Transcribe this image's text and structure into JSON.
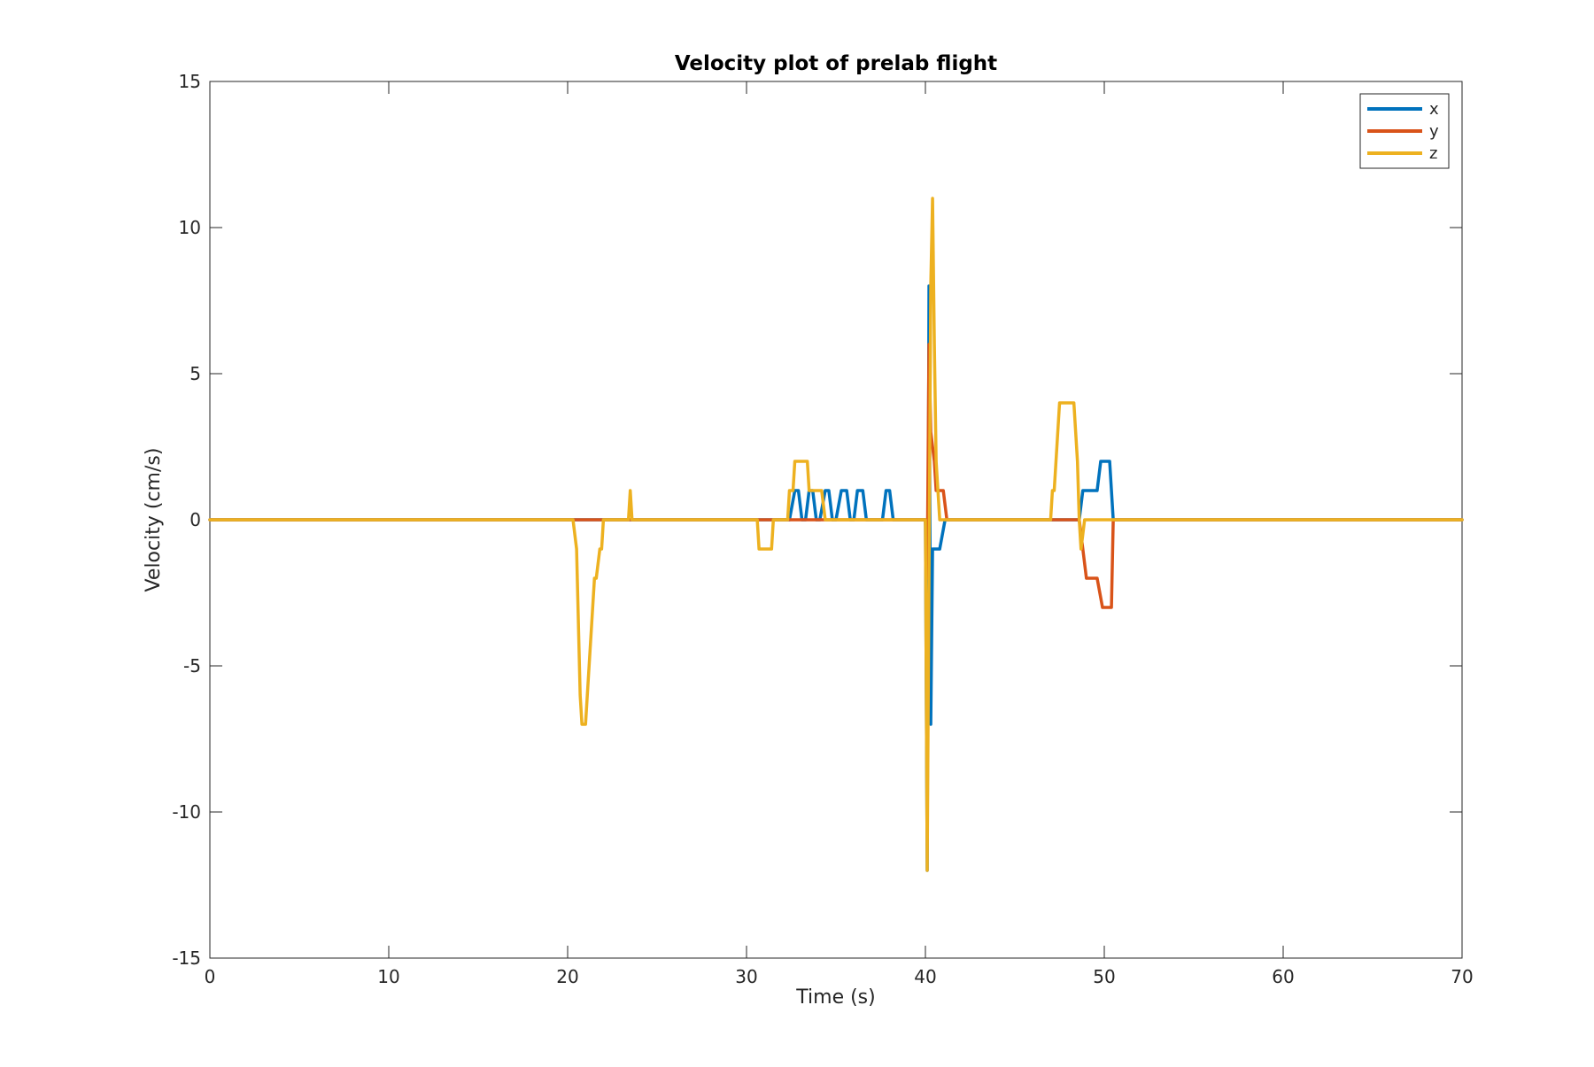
{
  "chart_data": {
    "type": "line",
    "title": "Velocity plot of prelab flight",
    "xlabel": "Time (s)",
    "ylabel": "Velocity (cm/s)",
    "xlim": [
      0,
      70
    ],
    "ylim": [
      -15,
      15
    ],
    "xticks": [
      0,
      10,
      20,
      30,
      40,
      50,
      60,
      70
    ],
    "yticks": [
      -15,
      -10,
      -5,
      0,
      5,
      10,
      15
    ],
    "grid": false,
    "legend": "top-right",
    "series": [
      {
        "name": "x",
        "color": "#0072BD",
        "points": [
          [
            0,
            0
          ],
          [
            32.4,
            0
          ],
          [
            32.7,
            1
          ],
          [
            32.9,
            1
          ],
          [
            33.1,
            0
          ],
          [
            33.3,
            0
          ],
          [
            33.5,
            1
          ],
          [
            33.7,
            1
          ],
          [
            33.9,
            0
          ],
          [
            34.1,
            0
          ],
          [
            34.4,
            1
          ],
          [
            34.6,
            1
          ],
          [
            34.8,
            0
          ],
          [
            35.0,
            0
          ],
          [
            35.3,
            1
          ],
          [
            35.6,
            1
          ],
          [
            35.8,
            0
          ],
          [
            36.0,
            0
          ],
          [
            36.2,
            1
          ],
          [
            36.5,
            1
          ],
          [
            36.7,
            0
          ],
          [
            37.6,
            0
          ],
          [
            37.8,
            1
          ],
          [
            38.0,
            1
          ],
          [
            38.2,
            0
          ],
          [
            40.0,
            0
          ],
          [
            40.1,
            -12
          ],
          [
            40.2,
            8
          ],
          [
            40.3,
            -7
          ],
          [
            40.4,
            -1
          ],
          [
            40.8,
            -1
          ],
          [
            41.1,
            0
          ],
          [
            48.6,
            0
          ],
          [
            48.8,
            1
          ],
          [
            49.6,
            1
          ],
          [
            49.8,
            2
          ],
          [
            50.3,
            2
          ],
          [
            50.5,
            0
          ],
          [
            70,
            0
          ]
        ]
      },
      {
        "name": "y",
        "color": "#D95319",
        "points": [
          [
            0,
            0
          ],
          [
            40.0,
            0
          ],
          [
            40.1,
            -2
          ],
          [
            40.2,
            6
          ],
          [
            40.3,
            3
          ],
          [
            40.5,
            2
          ],
          [
            40.6,
            1
          ],
          [
            41.0,
            1
          ],
          [
            41.2,
            0
          ],
          [
            48.6,
            0
          ],
          [
            48.8,
            -1
          ],
          [
            49.0,
            -2
          ],
          [
            49.6,
            -2
          ],
          [
            49.9,
            -3
          ],
          [
            50.4,
            -3
          ],
          [
            50.5,
            0
          ],
          [
            70,
            0
          ]
        ]
      },
      {
        "name": "z",
        "color": "#EDB120",
        "points": [
          [
            0,
            0
          ],
          [
            20.3,
            0
          ],
          [
            20.5,
            -1
          ],
          [
            20.7,
            -6
          ],
          [
            20.8,
            -7
          ],
          [
            21.0,
            -7
          ],
          [
            21.5,
            -2
          ],
          [
            21.6,
            -2
          ],
          [
            21.8,
            -1
          ],
          [
            21.9,
            -1
          ],
          [
            22.0,
            0
          ],
          [
            23.4,
            0
          ],
          [
            23.5,
            1
          ],
          [
            23.6,
            0
          ],
          [
            30.6,
            0
          ],
          [
            30.7,
            -1
          ],
          [
            31.4,
            -1
          ],
          [
            31.5,
            0
          ],
          [
            32.3,
            0
          ],
          [
            32.4,
            1
          ],
          [
            32.6,
            1
          ],
          [
            32.7,
            2
          ],
          [
            33.4,
            2
          ],
          [
            33.5,
            1
          ],
          [
            34.2,
            1
          ],
          [
            34.4,
            0
          ],
          [
            40.0,
            0
          ],
          [
            40.1,
            -12
          ],
          [
            40.3,
            8
          ],
          [
            40.4,
            11
          ],
          [
            40.5,
            6
          ],
          [
            40.6,
            2
          ],
          [
            40.8,
            0
          ],
          [
            47.0,
            0
          ],
          [
            47.1,
            1
          ],
          [
            47.2,
            1
          ],
          [
            47.5,
            4
          ],
          [
            48.3,
            4
          ],
          [
            48.4,
            3
          ],
          [
            48.5,
            2
          ],
          [
            48.6,
            0
          ],
          [
            48.7,
            -1
          ],
          [
            48.9,
            0
          ],
          [
            70,
            0
          ]
        ]
      }
    ]
  }
}
